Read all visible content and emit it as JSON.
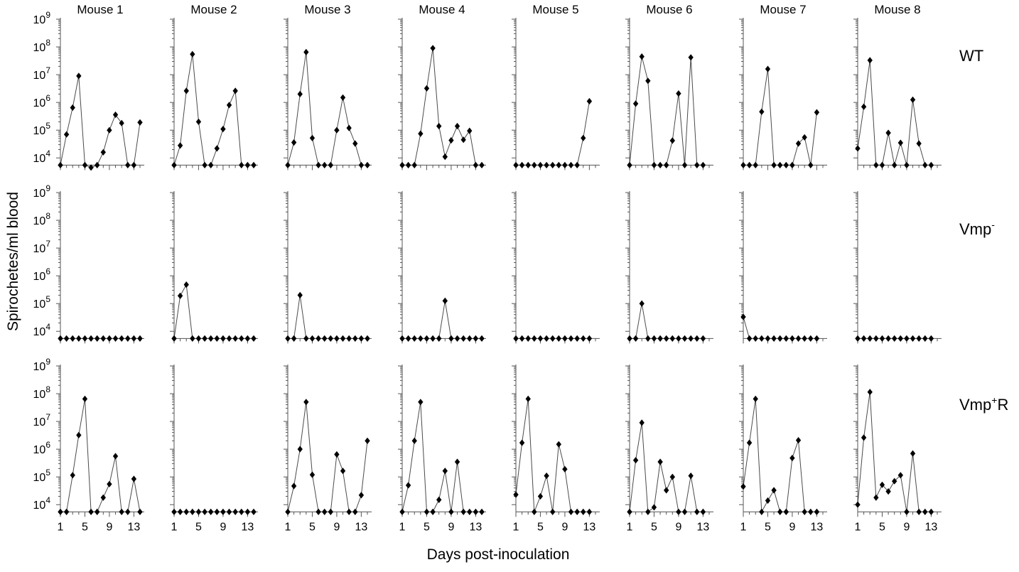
{
  "chart_data": {
    "type": "line",
    "title": "",
    "xlabel": "Days post-inoculation",
    "ylabel": "Spirochetes/ml blood",
    "yscale": "log",
    "ylim": [
      5000,
      1000000000
    ],
    "xlim": [
      1,
      14
    ],
    "detection_limit": 5500,
    "xticks": [
      1,
      5,
      9,
      13
    ],
    "yticks": [
      {
        "value": 10000,
        "base": "10",
        "exp": "4"
      },
      {
        "value": 100000,
        "base": "10",
        "exp": "5"
      },
      {
        "value": 1000000,
        "base": "10",
        "exp": "6"
      },
      {
        "value": 10000000,
        "base": "10",
        "exp": "7"
      },
      {
        "value": 100000000,
        "base": "10",
        "exp": "8"
      },
      {
        "value": 1000000000,
        "base": "10",
        "exp": "9"
      }
    ],
    "columns": [
      "Mouse 1",
      "Mouse 2",
      "Mouse 3",
      "Mouse 4",
      "Mouse 5",
      "Mouse 6",
      "Mouse 7",
      "Mouse 8"
    ],
    "rows": [
      {
        "label_main": "WT",
        "label_sup": "",
        "label_tail": ""
      },
      {
        "label_main": "Vmp",
        "label_sup": "-",
        "label_tail": ""
      },
      {
        "label_main": "Vmp",
        "label_sup": "+",
        "label_tail": "R"
      }
    ],
    "marker": "diamond",
    "colors": {
      "line": "#4a4a4a",
      "marker": "#000000",
      "axis": "#555555"
    },
    "series": [
      [
        {
          "x": [
            1,
            2,
            3,
            4,
            5,
            6,
            7,
            8,
            9,
            10,
            11,
            12,
            13,
            14
          ],
          "y": [
            5500,
            70000,
            650000,
            9000000,
            5500,
            4500,
            5500,
            16000,
            100000,
            360000,
            180000,
            5500,
            5500,
            190000
          ]
        },
        {
          "x": [
            1,
            2,
            3,
            4,
            5,
            6,
            7,
            8,
            9,
            10,
            11,
            12,
            13,
            14
          ],
          "y": [
            5500,
            28000,
            2600000,
            55000000,
            200000,
            5500,
            5500,
            22000,
            110000,
            800000,
            2600000,
            5500,
            5500,
            5500
          ]
        },
        {
          "x": [
            1,
            2,
            3,
            4,
            5,
            6,
            7,
            8,
            9,
            10,
            11,
            12,
            13,
            14
          ],
          "y": [
            5500,
            36000,
            2000000,
            65000000,
            52000,
            5500,
            5500,
            5500,
            100000,
            1500000,
            120000,
            33000,
            5500,
            5500
          ]
        },
        {
          "x": [
            1,
            2,
            3,
            4,
            5,
            6,
            7,
            8,
            9,
            10,
            11,
            12,
            13,
            14
          ],
          "y": [
            5500,
            5500,
            5500,
            75000,
            3200000,
            90000000,
            140000,
            11000,
            43000,
            140000,
            45000,
            95000,
            5500,
            5500
          ]
        },
        {
          "x": [
            1,
            2,
            3,
            4,
            5,
            6,
            7,
            8,
            9,
            10,
            11,
            12,
            13
          ],
          "y": [
            5500,
            5500,
            5500,
            5500,
            5500,
            5500,
            5500,
            5500,
            5500,
            5500,
            5500,
            52000,
            1100000
          ]
        },
        {
          "x": [
            1,
            2,
            3,
            4,
            5,
            6,
            7,
            8,
            9,
            10,
            11,
            12,
            13
          ],
          "y": [
            5500,
            900000,
            45000000,
            6000000,
            5500,
            5500,
            5500,
            42000,
            2100000,
            5500,
            42000000,
            5500,
            5500
          ]
        },
        {
          "x": [
            1,
            2,
            3,
            4,
            5,
            6,
            7,
            8,
            9,
            10,
            11,
            12,
            13
          ],
          "y": [
            5500,
            5500,
            5500,
            460000,
            16000000,
            5500,
            5500,
            5500,
            5500,
            33000,
            55000,
            5500,
            440000
          ]
        },
        {
          "x": [
            1,
            2,
            3,
            4,
            5,
            6,
            7,
            8,
            9,
            10,
            11,
            12,
            13
          ],
          "y": [
            22000,
            700000,
            33000000,
            5500,
            5500,
            80000,
            5500,
            35000,
            5500,
            1250000,
            33000,
            5500,
            5500
          ]
        }
      ],
      [
        {
          "x": [
            1,
            2,
            3,
            4,
            5,
            6,
            7,
            8,
            9,
            10,
            11,
            12,
            13,
            14
          ],
          "y": [
            5500,
            5500,
            5500,
            5500,
            5500,
            5500,
            5500,
            5500,
            5500,
            5500,
            5500,
            5500,
            5500,
            5500
          ]
        },
        {
          "x": [
            1,
            2,
            3,
            4,
            5,
            6,
            7,
            8,
            9,
            10,
            11,
            12,
            13,
            14
          ],
          "y": [
            5500,
            190000,
            480000,
            5500,
            5500,
            5500,
            5500,
            5500,
            5500,
            5500,
            5500,
            5500,
            5500,
            5500
          ]
        },
        {
          "x": [
            1,
            2,
            3,
            4,
            5,
            6,
            7,
            8,
            9,
            10,
            11,
            12,
            13,
            14
          ],
          "y": [
            5500,
            5500,
            200000,
            5500,
            5500,
            5500,
            5500,
            5500,
            5500,
            5500,
            5500,
            5500,
            5500,
            5500
          ]
        },
        {
          "x": [
            1,
            2,
            3,
            4,
            5,
            6,
            7,
            8,
            9,
            10,
            11,
            12,
            13,
            14
          ],
          "y": [
            5500,
            5500,
            5500,
            5500,
            5500,
            5500,
            5500,
            125000,
            5500,
            5500,
            5500,
            5500,
            5500,
            5500
          ]
        },
        {
          "x": [
            1,
            2,
            3,
            4,
            5,
            6,
            7,
            8,
            9,
            10,
            11,
            12,
            13
          ],
          "y": [
            5500,
            5500,
            5500,
            5500,
            5500,
            5500,
            5500,
            5500,
            5500,
            5500,
            5500,
            5500,
            5500
          ]
        },
        {
          "x": [
            1,
            2,
            3,
            4,
            5,
            6,
            7,
            8,
            9,
            10,
            11,
            12,
            13
          ],
          "y": [
            5500,
            5500,
            100000,
            5500,
            5500,
            5500,
            5500,
            5500,
            5500,
            5500,
            5500,
            5500,
            5500
          ]
        },
        {
          "x": [
            1,
            2,
            3,
            4,
            5,
            6,
            7,
            8,
            9,
            10,
            11,
            12,
            13
          ],
          "y": [
            33000,
            5500,
            5500,
            5500,
            5500,
            5500,
            5500,
            5500,
            5500,
            5500,
            5500,
            5500,
            5500
          ]
        },
        {
          "x": [
            1,
            2,
            3,
            4,
            5,
            6,
            7,
            8,
            9,
            10,
            11,
            12,
            13
          ],
          "y": [
            5500,
            5500,
            5500,
            5500,
            5500,
            5500,
            5500,
            5500,
            5500,
            5500,
            5500,
            5500,
            5500
          ]
        }
      ],
      [
        {
          "x": [
            1,
            2,
            3,
            4,
            5,
            6,
            7,
            8,
            9,
            10,
            11,
            12,
            13,
            14
          ],
          "y": [
            5500,
            5500,
            115000,
            3200000,
            65000000,
            5500,
            5500,
            18000,
            55000,
            560000,
            5500,
            5500,
            85000,
            5500
          ]
        },
        {
          "x": [
            1,
            2,
            3,
            4,
            5,
            6,
            7,
            8,
            9,
            10,
            11,
            12,
            13,
            14
          ],
          "y": [
            5500,
            5500,
            5500,
            5500,
            5500,
            5500,
            5500,
            5500,
            5500,
            5500,
            5500,
            5500,
            5500,
            5500
          ]
        },
        {
          "x": [
            1,
            2,
            3,
            4,
            5,
            6,
            7,
            8,
            9,
            10,
            11,
            12,
            13,
            14
          ],
          "y": [
            5500,
            47000,
            1000000,
            50000000,
            120000,
            5500,
            5500,
            5500,
            650000,
            165000,
            5500,
            5500,
            22000,
            2000000
          ]
        },
        {
          "x": [
            1,
            2,
            3,
            4,
            5,
            6,
            7,
            8,
            9,
            10,
            11,
            12,
            13,
            14
          ],
          "y": [
            5500,
            50000,
            2000000,
            50000000,
            5500,
            5500,
            15000,
            165000,
            5500,
            350000,
            5500,
            5500,
            5500,
            5500
          ]
        },
        {
          "x": [
            1,
            2,
            3,
            4,
            5,
            6,
            7,
            8,
            9,
            10,
            11,
            12,
            13
          ],
          "y": [
            23000,
            1700000,
            65000000,
            5500,
            20000,
            110000,
            5500,
            1500000,
            190000,
            5500,
            5500,
            5500,
            5500
          ]
        },
        {
          "x": [
            1,
            2,
            3,
            4,
            5,
            6,
            7,
            8,
            9,
            10,
            11,
            12,
            13
          ],
          "y": [
            5500,
            400000,
            9000000,
            5500,
            8000,
            350000,
            33000,
            100000,
            5500,
            5500,
            110000,
            5500,
            5500
          ]
        },
        {
          "x": [
            1,
            2,
            3,
            4,
            5,
            6,
            7,
            8,
            9,
            10,
            11,
            12,
            13
          ],
          "y": [
            45000,
            1700000,
            65000000,
            5500,
            14000,
            33000,
            5500,
            5500,
            480000,
            2100000,
            5500,
            5500,
            5500
          ]
        },
        {
          "x": [
            1,
            2,
            3,
            4,
            5,
            6,
            7,
            8,
            9,
            10,
            11,
            12,
            13
          ],
          "y": [
            10000,
            2600000,
            115000000,
            18000,
            52000,
            30000,
            70000,
            115000,
            5500,
            700000,
            5500,
            5500,
            5500
          ]
        }
      ]
    ]
  }
}
